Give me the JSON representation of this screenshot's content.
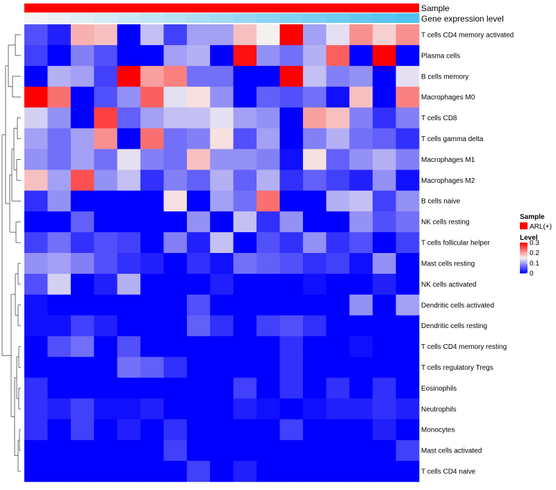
{
  "chart_data": {
    "type": "heatmap",
    "title": "",
    "annotation_tracks": [
      {
        "label": "Sample",
        "value": "ARL(+)",
        "color": "#ff0000"
      },
      {
        "label": "Gene expression level",
        "gradient": [
          "#f2f4f7",
          "#4fc2ef"
        ]
      }
    ],
    "rows": [
      "T cells CD4 memory activated",
      "Plasma cells",
      "B cells memory",
      "Macrophages M0",
      "T cells CD8",
      "T cells gamma delta",
      "Macrophages M1",
      "Macrophages M2",
      "B cells naive",
      "NK cells resting",
      "T cells follicular helper",
      "Mast cells resting",
      "NK cells activated",
      "Dendritic cells activated",
      "Dendritic cells resting",
      "T cells CD4 memory resting",
      "T cells regulatory  Tregs",
      "Eosinophils",
      "Neutrophils",
      "Monocytes",
      "Mast cells activated",
      "T cells CD4 naive"
    ],
    "n_columns": 17,
    "values": [
      [
        0.05,
        0.02,
        0.19,
        0.18,
        0.0,
        0.12,
        0.04,
        0.1,
        0.1,
        0.18,
        0.15,
        0.3,
        0.1,
        0.14,
        0.21,
        0.17,
        0.21
      ],
      [
        0.04,
        0.0,
        0.08,
        0.05,
        0.0,
        0.0,
        0.1,
        0.11,
        0.0,
        0.29,
        0.09,
        0.07,
        0.11,
        0.24,
        0.0,
        0.3,
        0.0
      ],
      [
        0.0,
        0.11,
        0.1,
        0.04,
        0.3,
        0.2,
        0.22,
        0.07,
        0.07,
        0.0,
        0.0,
        0.3,
        0.12,
        0.08,
        0.09,
        0.0,
        0.14
      ],
      [
        0.3,
        0.23,
        0.0,
        0.05,
        0.09,
        0.24,
        0.14,
        0.16,
        0.09,
        0.0,
        0.06,
        0.05,
        0.07,
        0.01,
        0.18,
        0.0,
        0.22
      ],
      [
        0.13,
        0.09,
        0.0,
        0.26,
        0.06,
        0.1,
        0.12,
        0.12,
        0.14,
        0.1,
        0.09,
        0.0,
        0.2,
        0.18,
        0.08,
        0.03,
        0.08
      ],
      [
        0.1,
        0.07,
        0.1,
        0.21,
        0.0,
        0.23,
        0.07,
        0.08,
        0.16,
        0.05,
        0.1,
        0.0,
        0.08,
        0.11,
        0.07,
        0.06,
        0.03
      ],
      [
        0.09,
        0.07,
        0.1,
        0.07,
        0.14,
        0.08,
        0.07,
        0.18,
        0.09,
        0.09,
        0.08,
        0.01,
        0.16,
        0.06,
        0.09,
        0.11,
        0.08
      ],
      [
        0.18,
        0.1,
        0.25,
        0.09,
        0.12,
        0.03,
        0.08,
        0.06,
        0.11,
        0.06,
        0.11,
        0.03,
        0.06,
        0.04,
        0.02,
        0.09,
        0.01
      ],
      [
        0.03,
        0.09,
        0.0,
        0.0,
        0.0,
        0.0,
        0.16,
        0.0,
        0.1,
        0.07,
        0.23,
        0.0,
        0.0,
        0.11,
        0.12,
        0.04,
        0.09
      ],
      [
        0.0,
        0.0,
        0.06,
        0.0,
        0.0,
        0.0,
        0.0,
        0.09,
        0.0,
        0.12,
        0.03,
        0.09,
        0.0,
        0.0,
        0.09,
        0.05,
        0.07
      ],
      [
        0.04,
        0.07,
        0.03,
        0.05,
        0.04,
        0.0,
        0.08,
        0.02,
        0.12,
        0.0,
        0.05,
        0.03,
        0.09,
        0.03,
        0.05,
        0.0,
        0.04
      ],
      [
        0.09,
        0.1,
        0.08,
        0.05,
        0.03,
        0.02,
        0.0,
        0.03,
        0.01,
        0.07,
        0.06,
        0.05,
        0.03,
        0.04,
        0.01,
        0.09,
        0.0
      ],
      [
        0.05,
        0.13,
        0.0,
        0.02,
        0.11,
        0.0,
        0.0,
        0.0,
        0.02,
        0.0,
        0.0,
        0.0,
        0.01,
        0.0,
        0.0,
        0.02,
        0.0
      ],
      [
        0.01,
        0.0,
        0.0,
        0.0,
        0.0,
        0.0,
        0.0,
        0.05,
        0.0,
        0.0,
        0.0,
        0.0,
        0.0,
        0.0,
        0.09,
        0.0,
        0.1
      ],
      [
        0.01,
        0.01,
        0.04,
        0.02,
        0.0,
        0.0,
        0.0,
        0.06,
        0.03,
        0.0,
        0.04,
        0.05,
        0.03,
        0.0,
        0.0,
        0.0,
        0.0
      ],
      [
        0.0,
        0.05,
        0.07,
        0.0,
        0.05,
        0.0,
        0.0,
        0.0,
        0.0,
        0.0,
        0.0,
        0.03,
        0.0,
        0.0,
        0.01,
        0.0,
        0.0
      ],
      [
        0.0,
        0.0,
        0.0,
        0.0,
        0.07,
        0.06,
        0.03,
        0.0,
        0.0,
        0.0,
        0.0,
        0.03,
        0.0,
        0.0,
        0.0,
        0.0,
        0.0
      ],
      [
        0.03,
        0.0,
        0.0,
        0.0,
        0.0,
        0.0,
        0.0,
        0.0,
        0.0,
        0.04,
        0.0,
        0.03,
        0.0,
        0.03,
        0.0,
        0.03,
        0.0
      ],
      [
        0.03,
        0.02,
        0.04,
        0.01,
        0.01,
        0.02,
        0.0,
        0.0,
        0.0,
        0.02,
        0.01,
        0.0,
        0.01,
        0.02,
        0.02,
        0.03,
        0.02
      ],
      [
        0.03,
        0.0,
        0.04,
        0.0,
        0.02,
        0.0,
        0.03,
        0.0,
        0.0,
        0.0,
        0.0,
        0.04,
        0.0,
        0.0,
        0.0,
        0.02,
        0.0
      ],
      [
        0.0,
        0.0,
        0.0,
        0.0,
        0.0,
        0.0,
        0.04,
        0.0,
        0.0,
        0.0,
        0.0,
        0.0,
        0.0,
        0.0,
        0.0,
        0.0,
        0.04
      ],
      [
        0.0,
        0.0,
        0.0,
        0.0,
        0.0,
        0.0,
        0.0,
        0.04,
        0.0,
        0.02,
        0.0,
        0.0,
        0.0,
        0.0,
        0.0,
        0.0,
        0.0
      ]
    ],
    "color_scale": {
      "min": 0,
      "mid": 0.15,
      "max": 0.3,
      "low": "#0000ff",
      "midColor": "#f5f0f0",
      "high": "#ff0000"
    },
    "legend": {
      "sample_title": "Sample",
      "sample_entry": "ARL(+)",
      "level_title": "Level",
      "ticks": [
        0.3,
        0.2,
        0.1,
        0
      ],
      "tick_labels": [
        "0.3",
        "0.2",
        "0.1",
        "0"
      ],
      "position": "right"
    },
    "dendrogram": {
      "side": "left"
    }
  }
}
